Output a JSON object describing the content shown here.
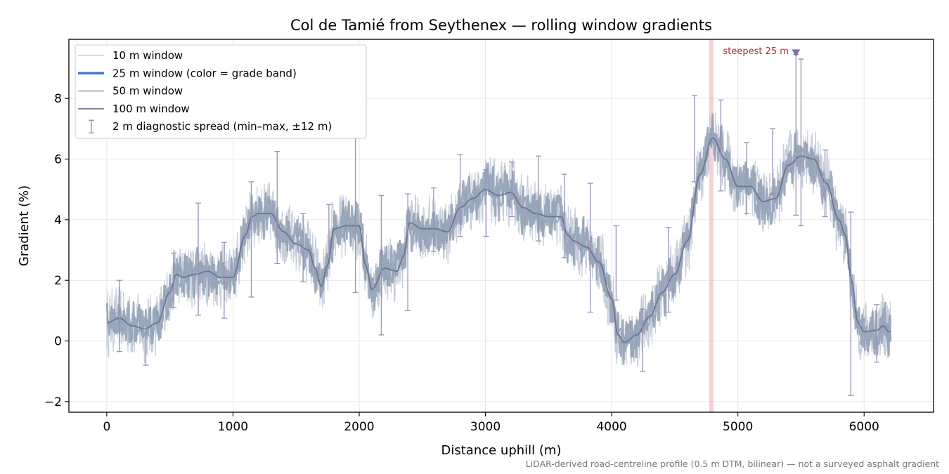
{
  "chart_data": {
    "type": "line",
    "title": "Col de Tamié from Seythenex — rolling window gradients",
    "xlabel": "Distance uphill (m)",
    "ylabel": "Gradient (%)",
    "xlim": [
      -300,
      6550
    ],
    "ylim": [
      -2.35,
      9.95
    ],
    "x_ticks": [
      0,
      1000,
      2000,
      3000,
      4000,
      5000,
      6000
    ],
    "y_ticks": [
      -2,
      0,
      2,
      4,
      6,
      8
    ],
    "y_tick_labels": [
      "−2",
      "0",
      "2",
      "4",
      "6",
      "8"
    ],
    "grid": true,
    "legend_position": "upper-left",
    "footnote": "LiDAR-derived road-centreline profile (0.5 m DTM, bilinear) — not a surveyed asphalt gradient",
    "legend": [
      {
        "label": "10 m window",
        "color": "#c5cdd9",
        "kind": "line"
      },
      {
        "label": "25 m window (color = grade band)",
        "color": "#3a7bd5",
        "kind": "thick-line"
      },
      {
        "label": "50 m window",
        "color": "#97a6ba",
        "kind": "line"
      },
      {
        "label": "100 m window",
        "color": "#6d7590",
        "kind": "line"
      },
      {
        "label": "2 m diagnostic spread (min–max, ±12 m)",
        "color": "#9891b4",
        "kind": "errorbar"
      }
    ],
    "series": [
      {
        "name": "100 m window",
        "color": "#6d7590",
        "x": [
          0,
          100,
          200,
          300,
          400,
          500,
          550,
          600,
          700,
          800,
          900,
          1000,
          1100,
          1150,
          1200,
          1300,
          1400,
          1500,
          1600,
          1650,
          1700,
          1750,
          1800,
          1900,
          2000,
          2050,
          2100,
          2200,
          2300,
          2350,
          2400,
          2500,
          2600,
          2700,
          2800,
          2900,
          3000,
          3100,
          3200,
          3300,
          3400,
          3500,
          3600,
          3650,
          3700,
          3800,
          3900,
          4000,
          4050,
          4100,
          4200,
          4300,
          4400,
          4500,
          4600,
          4700,
          4800,
          4900,
          5000,
          5100,
          5200,
          5300,
          5400,
          5500,
          5600,
          5700,
          5800,
          5850,
          5900,
          5950,
          6000,
          6100,
          6150,
          6200
        ],
        "y": [
          0.6,
          0.75,
          0.5,
          0.4,
          0.6,
          1.6,
          2.2,
          2.1,
          2.2,
          2.3,
          2.1,
          2.1,
          3.5,
          4.1,
          4.2,
          4.2,
          3.6,
          3.2,
          3.0,
          2.4,
          1.8,
          2.5,
          3.7,
          3.8,
          3.8,
          2.5,
          1.7,
          2.4,
          2.3,
          2.8,
          3.9,
          3.7,
          3.7,
          3.6,
          4.4,
          4.7,
          5.0,
          4.8,
          4.9,
          4.4,
          4.2,
          4.1,
          4.1,
          3.5,
          3.3,
          3.1,
          2.6,
          1.4,
          0.2,
          -0.05,
          0.2,
          0.8,
          1.6,
          2.2,
          3.3,
          5.5,
          6.7,
          6.0,
          5.1,
          5.1,
          4.6,
          4.7,
          5.8,
          6.1,
          6.0,
          5.2,
          4.0,
          3.5,
          2.0,
          0.6,
          0.3,
          0.35,
          0.5,
          0.3
        ]
      }
    ],
    "diagnostic_spread": [
      {
        "x": 100,
        "min": -0.35,
        "max": 2.0
      },
      {
        "x": 310,
        "min": -0.8,
        "max": 0.4
      },
      {
        "x": 530,
        "min": 1.1,
        "max": 2.9
      },
      {
        "x": 725,
        "min": 0.85,
        "max": 4.55
      },
      {
        "x": 930,
        "min": 0.75,
        "max": 3.25
      },
      {
        "x": 1145,
        "min": 1.45,
        "max": 5.25
      },
      {
        "x": 1350,
        "min": 2.55,
        "max": 6.25
      },
      {
        "x": 1555,
        "min": 1.95,
        "max": 4.2
      },
      {
        "x": 1760,
        "min": 2.8,
        "max": 4.5
      },
      {
        "x": 1970,
        "min": 1.6,
        "max": 6.7
      },
      {
        "x": 2175,
        "min": 0.2,
        "max": 4.8
      },
      {
        "x": 2385,
        "min": 1.0,
        "max": 4.85
      },
      {
        "x": 2590,
        "min": 2.95,
        "max": 5.05
      },
      {
        "x": 2800,
        "min": 3.45,
        "max": 6.15
      },
      {
        "x": 3005,
        "min": 3.45,
        "max": 5.65
      },
      {
        "x": 3210,
        "min": 4.1,
        "max": 5.9
      },
      {
        "x": 3420,
        "min": 3.3,
        "max": 6.1
      },
      {
        "x": 3625,
        "min": 2.75,
        "max": 5.5
      },
      {
        "x": 3830,
        "min": 0.95,
        "max": 5.2
      },
      {
        "x": 4035,
        "min": 1.35,
        "max": 3.8
      },
      {
        "x": 4245,
        "min": -1.0,
        "max": 1.05
      },
      {
        "x": 4450,
        "min": 0.95,
        "max": 3.75
      },
      {
        "x": 4655,
        "min": 5.25,
        "max": 8.1
      },
      {
        "x": 4865,
        "min": 4.95,
        "max": 7.95
      },
      {
        "x": 5070,
        "min": 4.2,
        "max": 6.55
      },
      {
        "x": 5275,
        "min": 4.85,
        "max": 7.0
      },
      {
        "x": 5460,
        "min": 4.15,
        "max": 9.45
      },
      {
        "x": 5500,
        "min": 3.8,
        "max": 9.3
      },
      {
        "x": 5690,
        "min": 4.1,
        "max": 6.3
      },
      {
        "x": 5895,
        "min": -1.8,
        "max": 4.25
      },
      {
        "x": 6100,
        "min": -0.7,
        "max": 1.2
      }
    ],
    "steepest_marker": {
      "x": 4790,
      "label": "steepest 25 m",
      "marker_x": 5460,
      "marker_y": 9.5
    }
  }
}
